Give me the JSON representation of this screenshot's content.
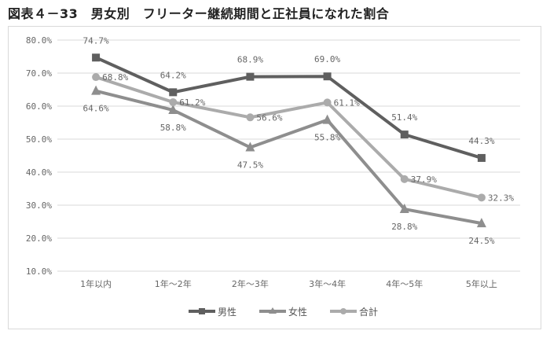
{
  "chart_data": {
    "type": "line",
    "title": "図表４－33　男女別　フリーター継続期間と正社員になれた割合",
    "categories": [
      "1年以内",
      "1年～2年",
      "2年～3年",
      "3年～4年",
      "4年～5年",
      "5年以上"
    ],
    "ylim": [
      10,
      80
    ],
    "yticks": [
      "10.0%",
      "20.0%",
      "30.0%",
      "40.0%",
      "50.0%",
      "60.0%",
      "70.0%",
      "80.0%"
    ],
    "grid": true,
    "legend_position": "bottom",
    "series": [
      {
        "name": "男性",
        "marker": "square",
        "color": "#5f5f5f",
        "values": [
          74.7,
          64.2,
          68.9,
          69.0,
          51.4,
          44.3
        ],
        "labels": [
          "74.7%",
          "64.2%",
          "68.9%",
          "69.0%",
          "51.4%",
          "44.3%"
        ]
      },
      {
        "name": "女性",
        "marker": "triangle",
        "color": "#8e8e8e",
        "values": [
          64.6,
          58.8,
          47.5,
          55.8,
          28.8,
          24.5
        ],
        "labels": [
          "64.6%",
          "58.8%",
          "47.5%",
          "55.8%",
          "28.8%",
          "24.5%"
        ]
      },
      {
        "name": "合計",
        "marker": "circle",
        "color": "#ababab",
        "values": [
          68.8,
          61.2,
          56.6,
          61.1,
          37.9,
          32.3
        ],
        "labels": [
          "68.8%",
          "61.2%",
          "56.6%",
          "61.1%",
          "37.9%",
          "32.3%"
        ]
      }
    ]
  }
}
